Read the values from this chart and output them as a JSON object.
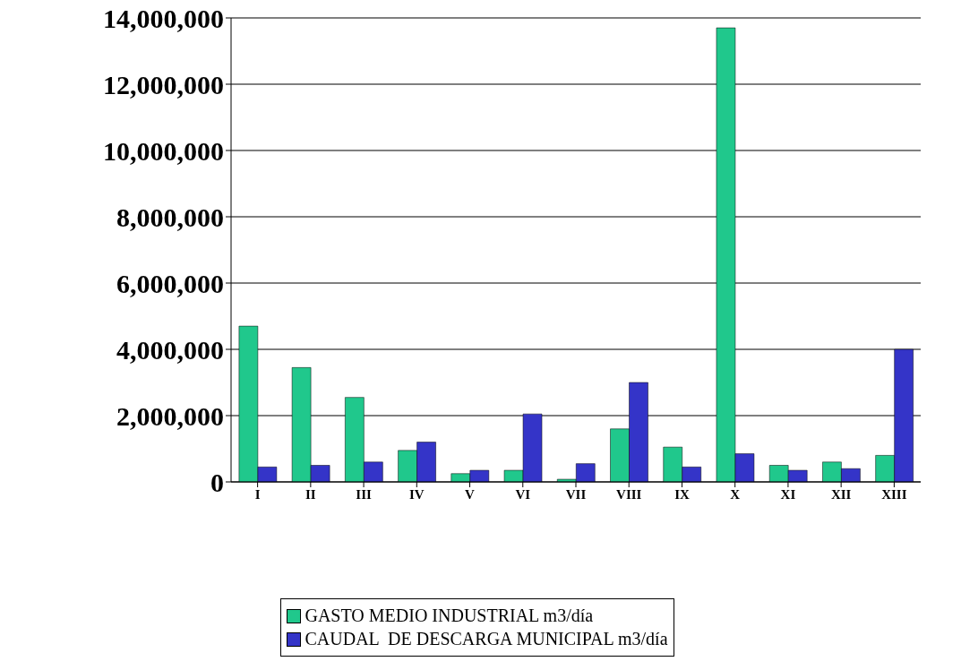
{
  "chart_data": {
    "type": "bar",
    "categories": [
      "I",
      "II",
      "III",
      "IV",
      "V",
      "VI",
      "VII",
      "VIII",
      "IX",
      "X",
      "XI",
      "XII",
      "XIII"
    ],
    "series": [
      {
        "name": "GASTO MEDIO INDUSTRIAL m3/día",
        "color": "#20c88c",
        "values": [
          4700000,
          3450000,
          2550000,
          950000,
          250000,
          350000,
          80000,
          1600000,
          1050000,
          13700000,
          500000,
          600000,
          800000
        ]
      },
      {
        "name": "CAUDAL  DE DESCARGA MUNICIPAL m3/día",
        "color": "#3434c8",
        "values": [
          450000,
          500000,
          600000,
          1200000,
          350000,
          2050000,
          550000,
          3000000,
          450000,
          850000,
          350000,
          400000,
          4000000
        ]
      }
    ],
    "ylim": [
      0,
      14000000
    ],
    "yticks": [
      {
        "value": 0,
        "label": "0"
      },
      {
        "value": 2000000,
        "label": "2,000,000"
      },
      {
        "value": 4000000,
        "label": "4,000,000"
      },
      {
        "value": 6000000,
        "label": "6,000,000"
      },
      {
        "value": 8000000,
        "label": "8,000,000"
      },
      {
        "value": 10000000,
        "label": "10,000,000"
      },
      {
        "value": 12000000,
        "label": "12,000,000"
      },
      {
        "value": 14000000,
        "label": "14,000,000"
      }
    ],
    "grid": "y",
    "legend": "bottom"
  }
}
